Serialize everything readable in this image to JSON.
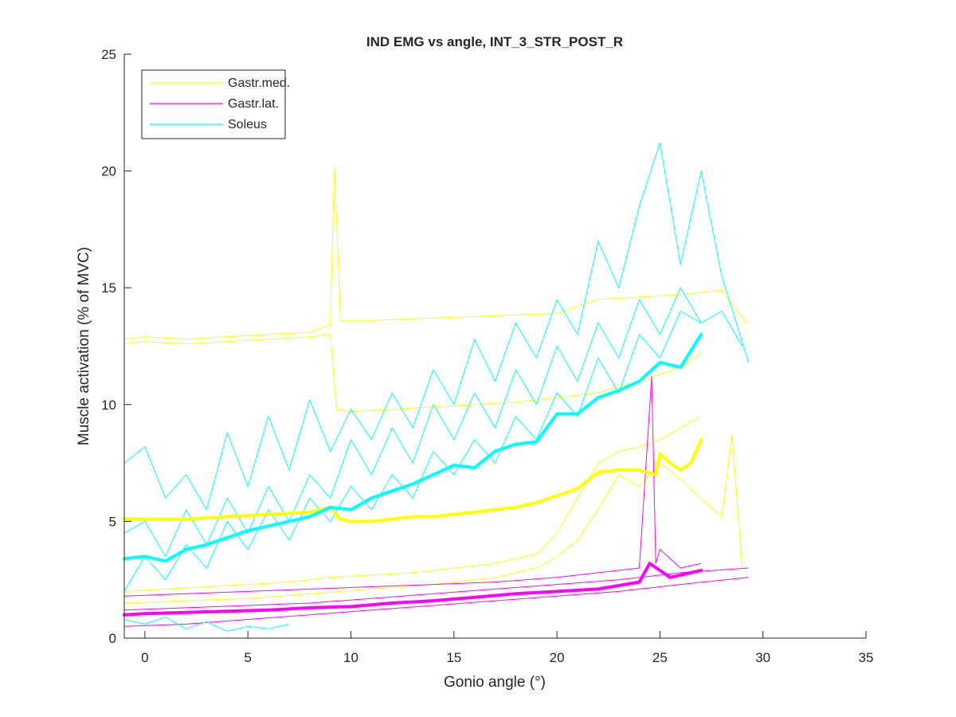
{
  "chart_data": {
    "type": "line",
    "title": "IND EMG vs angle, INT_3_STR_POST_R",
    "xlabel": "Gonio angle (°)",
    "ylabel": "Muscle activation (% of MVC)",
    "xlim": [
      -1,
      35
    ],
    "ylim": [
      0,
      25
    ],
    "xticks": [
      0,
      5,
      10,
      15,
      20,
      25,
      30,
      35
    ],
    "yticks": [
      0,
      5,
      10,
      15,
      20,
      25
    ],
    "grid": false,
    "legend_position": "top-left",
    "series": [
      {
        "name": "Gastr.med.",
        "color": "#ffff00",
        "mean": {
          "x": [
            -1,
            0,
            2,
            4,
            6,
            8,
            9,
            9.5,
            10,
            11,
            12,
            13,
            14,
            15,
            16,
            17,
            18,
            19,
            20,
            21,
            22,
            23,
            24,
            24.8,
            25,
            25.5,
            26,
            26.5,
            27
          ],
          "y": [
            5.1,
            5.1,
            5.1,
            5.2,
            5.3,
            5.4,
            5.6,
            5.1,
            5.0,
            5.0,
            5.1,
            5.2,
            5.2,
            5.3,
            5.4,
            5.5,
            5.6,
            5.8,
            6.1,
            6.4,
            7.1,
            7.2,
            7.2,
            7.0,
            7.9,
            7.5,
            7.2,
            7.5,
            8.5
          ]
        },
        "trials": [
          {
            "x": [
              -1,
              0,
              2,
              4,
              6,
              8,
              9,
              9.2,
              9.5,
              11,
              14,
              17,
              20,
              22,
              24,
              26,
              28,
              29.2
            ],
            "y": [
              12.8,
              12.9,
              12.8,
              12.9,
              13.0,
              13.1,
              13.4,
              20.2,
              13.6,
              13.6,
              13.7,
              13.8,
              13.9,
              14.5,
              14.6,
              14.7,
              14.9,
              13.5
            ]
          },
          {
            "x": [
              -1,
              0,
              2,
              4,
              6,
              8,
              9,
              9.3,
              10,
              12,
              14,
              16,
              18,
              20,
              22,
              24,
              26,
              27
            ],
            "y": [
              12.6,
              12.7,
              12.6,
              12.7,
              12.8,
              12.9,
              13.0,
              9.8,
              9.7,
              9.8,
              9.9,
              10.0,
              10.1,
              10.3,
              10.5,
              11.0,
              11.6,
              12.2
            ]
          },
          {
            "x": [
              -1,
              1,
              3,
              5,
              7,
              9,
              11,
              13,
              15,
              17,
              19,
              20,
              21,
              22,
              23,
              24,
              25,
              26,
              27
            ],
            "y": [
              2.0,
              2.1,
              2.2,
              2.3,
              2.4,
              2.6,
              2.7,
              2.8,
              3.0,
              3.2,
              3.6,
              4.5,
              6.0,
              7.5,
              8.0,
              8.2,
              8.5,
              9.0,
              9.5
            ]
          },
          {
            "x": [
              -1,
              2,
              5,
              8,
              11,
              14,
              17,
              19,
              20,
              21,
              22,
              23,
              24,
              25,
              26,
              27,
              28,
              28.5,
              29
            ],
            "y": [
              1.5,
              1.6,
              1.7,
              1.9,
              2.1,
              2.3,
              2.6,
              3.0,
              3.5,
              4.2,
              5.5,
              7.0,
              6.5,
              7.5,
              6.8,
              6.0,
              5.2,
              8.7,
              3.0
            ]
          }
        ]
      },
      {
        "name": "Gastr.lat.",
        "color": "#ff00ff",
        "mean": {
          "x": [
            -1,
            0,
            2,
            4,
            6,
            8,
            10,
            12,
            14,
            16,
            18,
            20,
            22,
            24,
            24.5,
            25,
            25.5,
            26,
            27
          ],
          "y": [
            1.0,
            1.05,
            1.1,
            1.15,
            1.2,
            1.3,
            1.35,
            1.5,
            1.6,
            1.75,
            1.9,
            2.0,
            2.1,
            2.4,
            3.2,
            2.9,
            2.6,
            2.7,
            2.9
          ]
        },
        "trials": [
          {
            "x": [
              -1,
              2,
              5,
              8,
              11,
              14,
              17,
              20,
              22,
              24,
              24.6,
              24.8,
              25,
              26,
              27
            ],
            "y": [
              1.8,
              1.9,
              2.0,
              2.1,
              2.2,
              2.3,
              2.4,
              2.6,
              2.8,
              3.0,
              11.2,
              3.2,
              3.8,
              3.0,
              3.2
            ]
          },
          {
            "x": [
              -1,
              2,
              5,
              8,
              11,
              14,
              17,
              20,
              23,
              26,
              29.3
            ],
            "y": [
              0.5,
              0.6,
              0.8,
              1.0,
              1.2,
              1.4,
              1.6,
              1.8,
              2.0,
              2.3,
              2.6
            ]
          },
          {
            "x": [
              -1,
              2,
              5,
              8,
              11,
              14,
              17,
              20,
              23,
              26,
              29.3
            ],
            "y": [
              1.2,
              1.3,
              1.4,
              1.5,
              1.7,
              1.9,
              2.1,
              2.3,
              2.5,
              2.8,
              3.0
            ]
          }
        ]
      },
      {
        "name": "Soleus",
        "color": "#00ffff",
        "mean": {
          "x": [
            -1,
            0,
            1,
            2,
            3,
            4,
            5,
            6,
            7,
            8,
            9,
            10,
            11,
            12,
            13,
            14,
            15,
            16,
            17,
            18,
            19,
            20,
            21,
            22,
            23,
            24,
            25,
            26,
            27
          ],
          "y": [
            3.4,
            3.5,
            3.3,
            3.8,
            4.0,
            4.3,
            4.6,
            4.8,
            5.0,
            5.2,
            5.6,
            5.5,
            6.0,
            6.3,
            6.6,
            7.0,
            7.4,
            7.3,
            8.0,
            8.3,
            8.4,
            9.6,
            9.6,
            10.3,
            10.6,
            11.0,
            11.8,
            11.6,
            13.0
          ]
        },
        "trials": [
          {
            "x": [
              -1,
              0,
              1,
              2,
              3,
              4,
              5,
              6,
              7,
              8,
              9,
              10,
              11,
              12,
              13,
              14,
              15,
              16,
              17,
              18,
              19,
              20,
              21,
              22,
              23,
              24,
              25,
              26,
              27,
              28,
              29.3
            ],
            "y": [
              7.5,
              8.2,
              6.0,
              7.0,
              5.5,
              8.8,
              6.5,
              9.5,
              7.2,
              10.2,
              8.0,
              9.8,
              8.5,
              10.5,
              9.0,
              11.5,
              10.0,
              12.8,
              11.0,
              13.5,
              12.0,
              14.5,
              13.0,
              17.0,
              15.0,
              18.5,
              21.2,
              16.0,
              20.0,
              15.5,
              11.8
            ]
          },
          {
            "x": [
              -1,
              0,
              1,
              2,
              3,
              4,
              5,
              6,
              7,
              8,
              9,
              10,
              11,
              12,
              13,
              14,
              15,
              16,
              17,
              18,
              19,
              20,
              21,
              22,
              23,
              24,
              25,
              26,
              27
            ],
            "y": [
              2.0,
              3.5,
              2.5,
              4.0,
              3.0,
              5.0,
              3.8,
              5.5,
              4.2,
              6.0,
              5.0,
              6.5,
              5.5,
              7.0,
              6.0,
              8.0,
              7.0,
              8.5,
              7.5,
              9.5,
              8.5,
              10.5,
              9.5,
              12.0,
              10.5,
              13.0,
              12.0,
              14.0,
              13.5
            ]
          },
          {
            "x": [
              -1,
              0,
              1,
              2,
              3,
              4,
              5,
              6,
              7,
              8,
              9,
              10,
              11,
              12,
              13,
              14,
              15,
              16,
              17,
              18,
              19,
              20,
              21,
              22,
              23,
              24,
              25,
              26,
              27,
              28,
              29
            ],
            "y": [
              4.5,
              5.0,
              3.5,
              5.5,
              4.0,
              6.0,
              4.5,
              6.5,
              5.0,
              7.0,
              6.0,
              8.5,
              7.0,
              9.0,
              7.5,
              10.0,
              8.5,
              10.5,
              9.0,
              11.5,
              10.0,
              12.5,
              11.0,
              13.5,
              12.0,
              14.5,
              13.0,
              15.0,
              13.5,
              14.0,
              12.5
            ]
          },
          {
            "x": [
              -1,
              0,
              1,
              2,
              3,
              4,
              5,
              6,
              7
            ],
            "y": [
              0.8,
              0.6,
              0.9,
              0.4,
              0.7,
              0.3,
              0.5,
              0.4,
              0.6
            ]
          }
        ]
      }
    ]
  }
}
